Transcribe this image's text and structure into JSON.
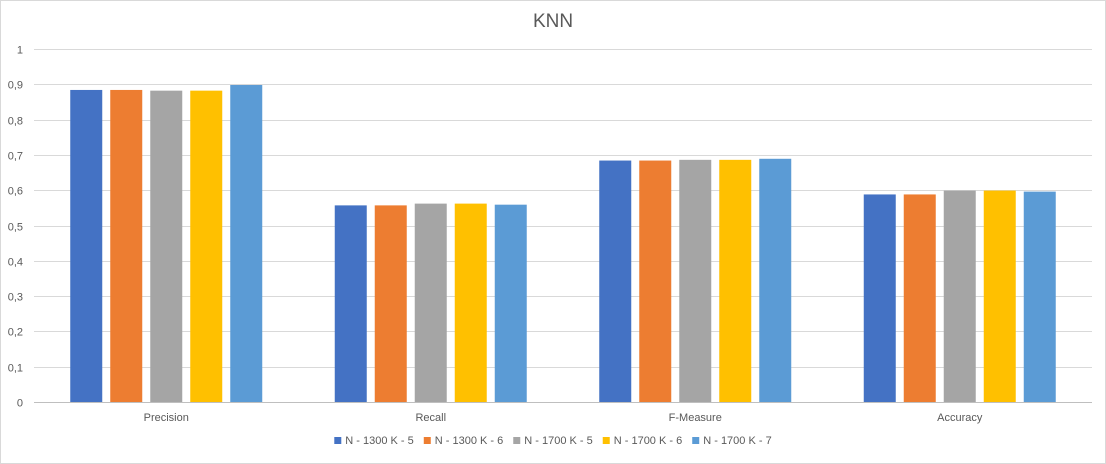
{
  "chart_data": {
    "type": "bar",
    "title": "KNN",
    "xlabel": "",
    "ylabel": "",
    "ylim": [
      0,
      1
    ],
    "yticks": [
      "0",
      "0,1",
      "0,2",
      "0,3",
      "0,4",
      "0,5",
      "0,6",
      "0,7",
      "0,8",
      "0,9",
      "1"
    ],
    "grid": true,
    "legend_position": "bottom",
    "categories": [
      "Precision",
      "Recall",
      "F-Measure",
      "Accuracy"
    ],
    "series": [
      {
        "name": "N - 1300 K - 5",
        "color": "#4472c4",
        "values": [
          0.884,
          0.557,
          0.684,
          0.588
        ]
      },
      {
        "name": "N - 1300 K - 6",
        "color": "#ed7d31",
        "values": [
          0.884,
          0.557,
          0.684,
          0.588
        ]
      },
      {
        "name": "N - 1700 K - 5",
        "color": "#a5a5a5",
        "values": [
          0.882,
          0.562,
          0.686,
          0.599
        ]
      },
      {
        "name": "N - 1700 K - 6",
        "color": "#ffc000",
        "values": [
          0.882,
          0.562,
          0.686,
          0.599
        ]
      },
      {
        "name": "N - 1700 K - 7",
        "color": "#5b9bd5",
        "values": [
          0.898,
          0.559,
          0.689,
          0.596
        ]
      }
    ]
  }
}
